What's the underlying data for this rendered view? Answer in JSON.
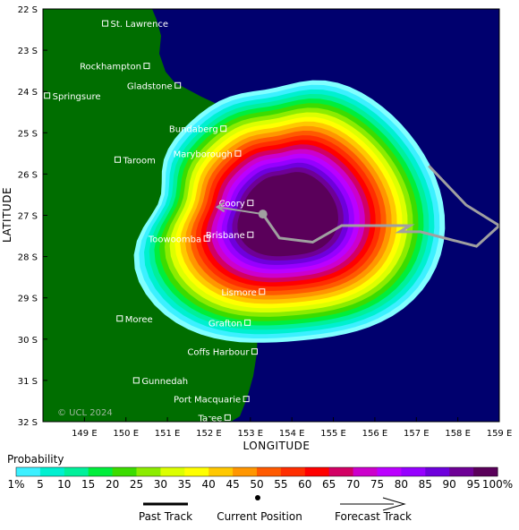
{
  "map": {
    "axis": {
      "x_title": "LONGITUDE",
      "y_title": "LATITUDE",
      "lon_ticks": [
        "149 E",
        "150 E",
        "151 E",
        "152 E",
        "153 E",
        "154 E",
        "155 E",
        "156 E",
        "157 E",
        "158 E",
        "159 E"
      ],
      "lat_ticks": [
        "22 S",
        "23 S",
        "24 S",
        "25 S",
        "26 S",
        "27 S",
        "28 S",
        "29 S",
        "30 S",
        "31 S",
        "32 S"
      ]
    },
    "copyright": "© UCL 2024",
    "colors": {
      "ocean": "#00006e",
      "land": "#006e00",
      "track": "#a0a0a0",
      "city_marker": "#ffffff"
    },
    "cities": [
      {
        "name": "St. Lawrence",
        "lon": 149.5,
        "lat": -22.35
      },
      {
        "name": "Rockhampton",
        "lon": 150.5,
        "lat": -23.38
      },
      {
        "name": "Gladstone",
        "lon": 151.25,
        "lat": -23.85
      },
      {
        "name": "Springsure",
        "lon": 148.1,
        "lat": -24.1
      },
      {
        "name": "Bundaberg",
        "lon": 152.35,
        "lat": -24.9
      },
      {
        "name": "Maryborough",
        "lon": 152.7,
        "lat": -25.5
      },
      {
        "name": "Taroom",
        "lon": 149.8,
        "lat": -25.65
      },
      {
        "name": "Coory",
        "lon": 153.0,
        "lat": -26.7
      },
      {
        "name": "Brisbane",
        "lon": 153.0,
        "lat": -27.47
      },
      {
        "name": "Toowoomba",
        "lon": 151.95,
        "lat": -27.56
      },
      {
        "name": "Lismore",
        "lon": 153.28,
        "lat": -28.85
      },
      {
        "name": "Moree",
        "lon": 149.85,
        "lat": -29.5
      },
      {
        "name": "Grafton",
        "lon": 152.93,
        "lat": -29.6
      },
      {
        "name": "Coffs Harbour",
        "lon": 153.1,
        "lat": -30.3
      },
      {
        "name": "Gunnedah",
        "lon": 150.25,
        "lat": -31.0
      },
      {
        "name": "Port Macquarie",
        "lon": 152.9,
        "lat": -31.45
      },
      {
        "name": "Taree",
        "lon": 152.45,
        "lat": -31.9
      }
    ],
    "current_position": {
      "lon": 153.3,
      "lat": -26.97
    },
    "past_track": [
      [
        159.0,
        -27.25
      ],
      [
        158.45,
        -27.75
      ],
      [
        157.1,
        -27.4
      ],
      [
        156.6,
        -27.4
      ],
      [
        156.85,
        -27.25
      ],
      [
        155.2,
        -27.25
      ],
      [
        154.5,
        -27.65
      ],
      [
        153.7,
        -27.55
      ],
      [
        153.3,
        -26.97
      ]
    ],
    "past_track_branch": [
      [
        157.3,
        -25.8
      ],
      [
        158.2,
        -26.75
      ],
      [
        159.0,
        -27.25
      ]
    ],
    "forecast_track": [
      [
        153.3,
        -26.97
      ],
      [
        152.2,
        -26.8
      ]
    ],
    "probability_field": {
      "center": {
        "lon": 153.9,
        "lat": -27.0
      },
      "description": "strike probability contours, peak 100% near Brisbane decreasing outward"
    }
  },
  "legend": {
    "title": "Probability",
    "levels": [
      "1%",
      "5",
      "10",
      "15",
      "20",
      "25",
      "30",
      "35",
      "40",
      "45",
      "50",
      "55",
      "60",
      "65",
      "70",
      "75",
      "80",
      "85",
      "90",
      "95",
      "100%"
    ],
    "colors": [
      "#80ffff",
      "#3cf0ff",
      "#00f0d0",
      "#00f09a",
      "#00ee3c",
      "#3cdc00",
      "#8cec00",
      "#dcff00",
      "#ffff00",
      "#ffc800",
      "#ff9600",
      "#ff5a00",
      "#ff2e00",
      "#ff0000",
      "#d20064",
      "#cc00cc",
      "#bb00ff",
      "#9600ff",
      "#6e00dc",
      "#6e0096",
      "#5a005a"
    ]
  },
  "key": {
    "past_track": "Past Track",
    "current_position": "Current Position",
    "forecast_track": "Forecast Track"
  }
}
